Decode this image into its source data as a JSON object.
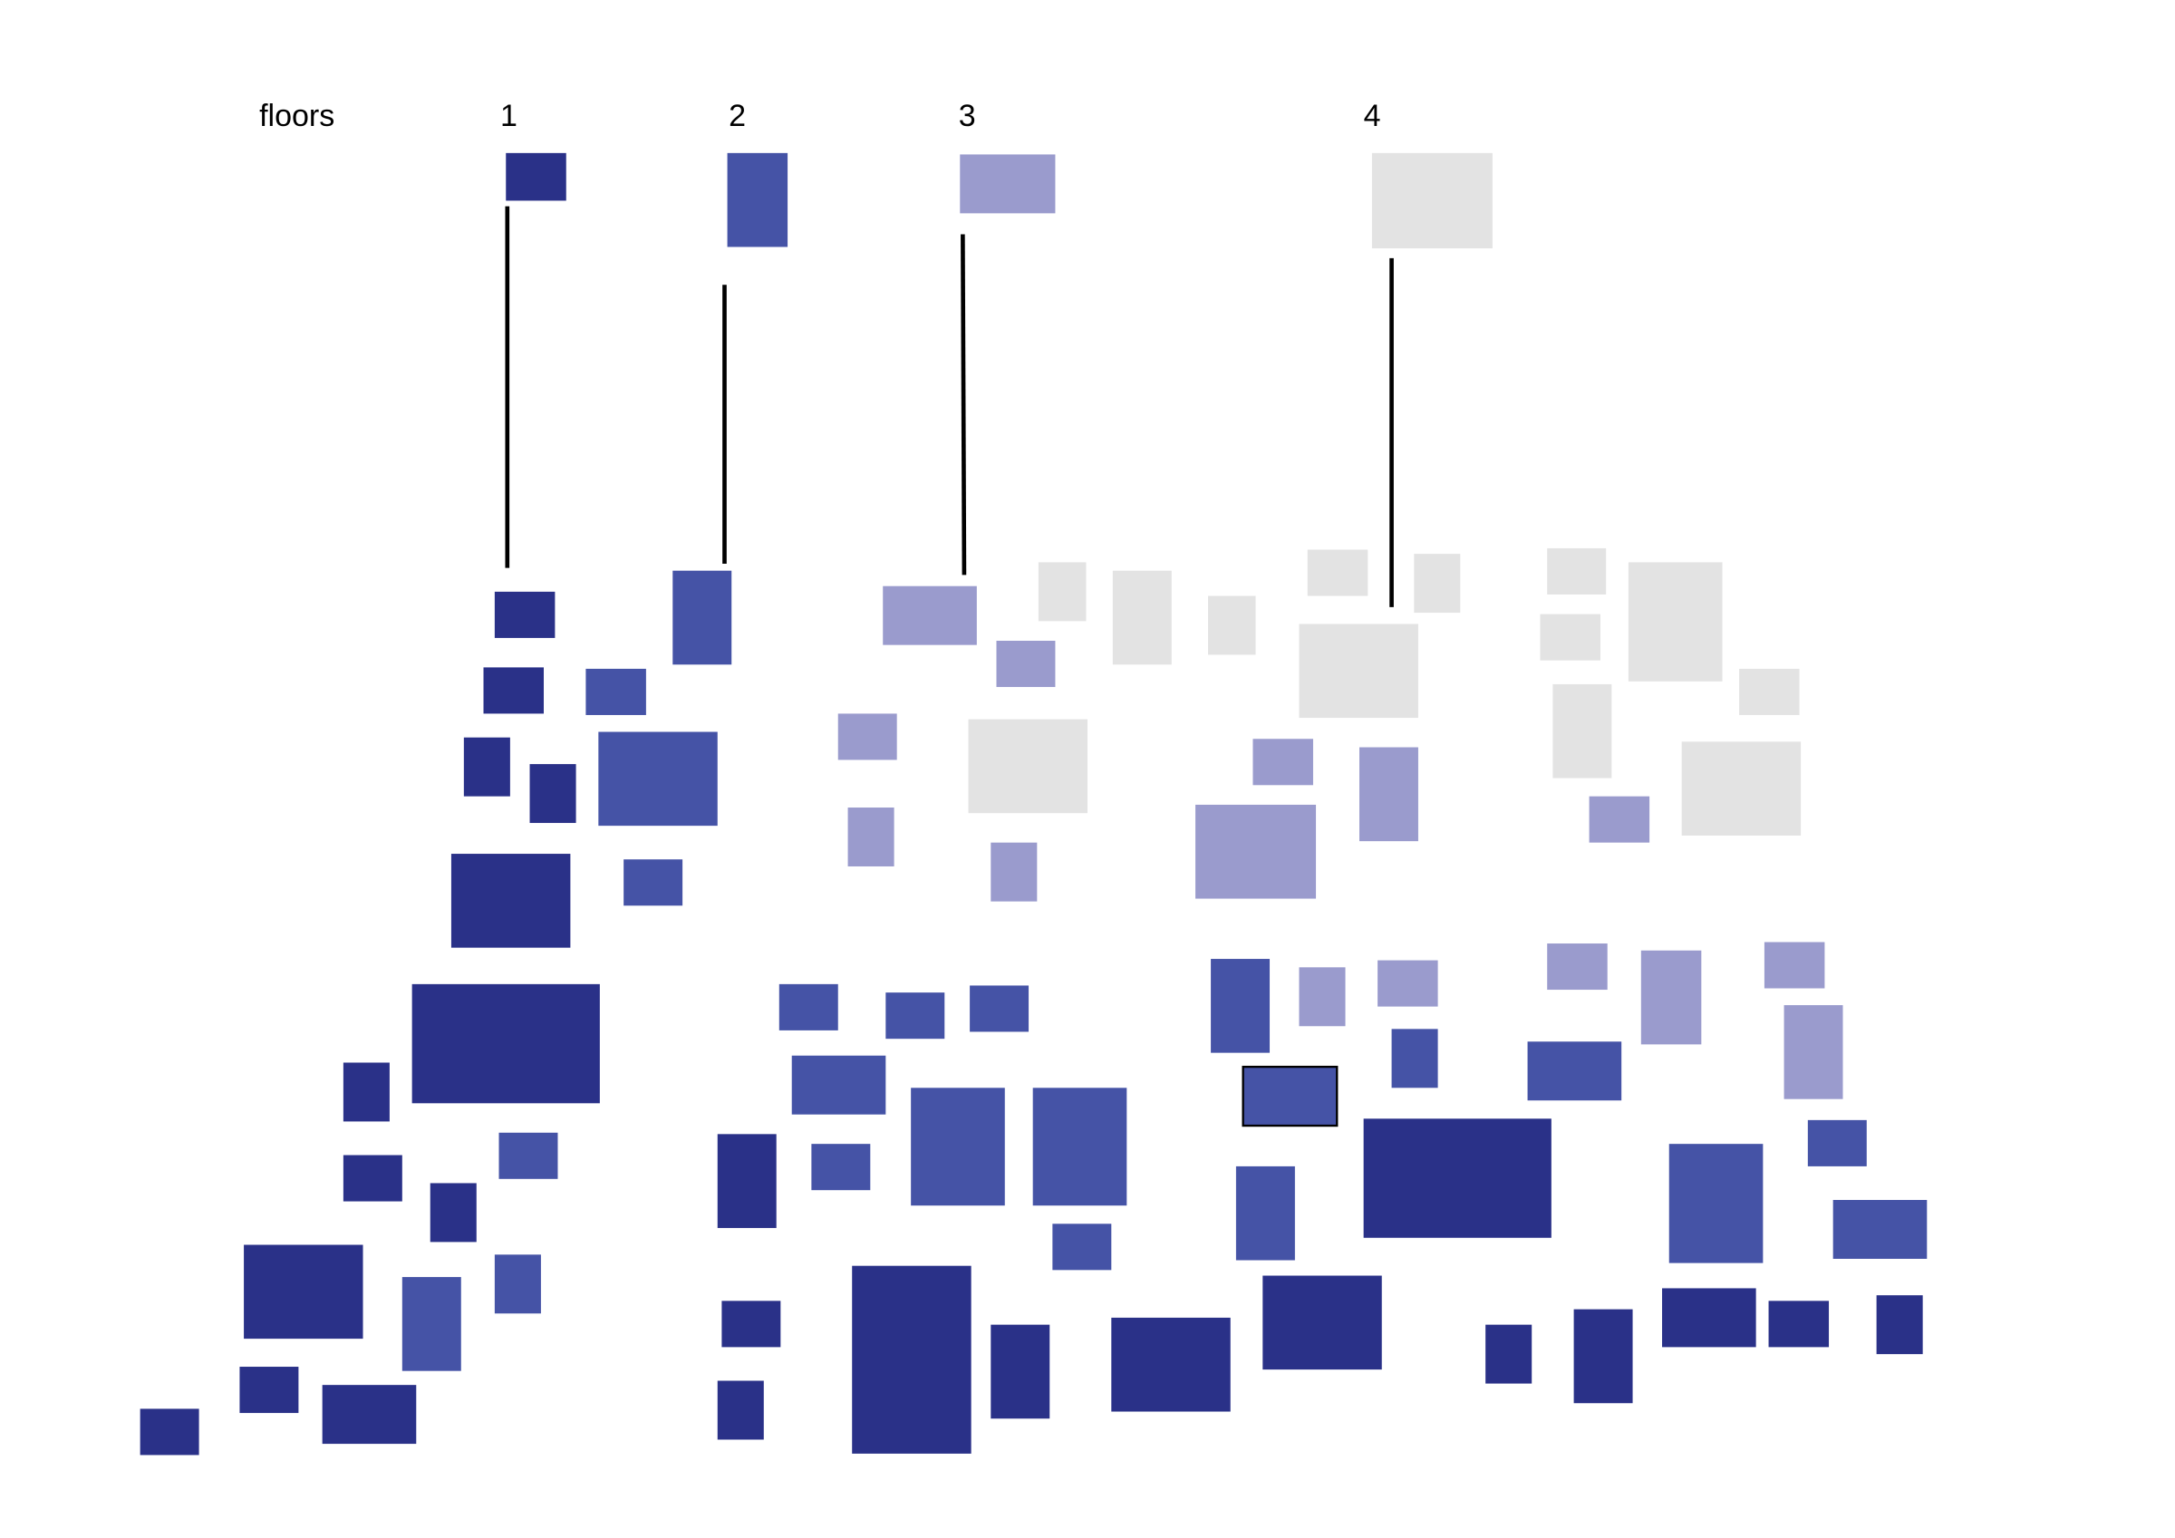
{
  "legend_title": "floors",
  "floors": [
    {
      "label": "1"
    },
    {
      "label": "2"
    },
    {
      "label": "3"
    },
    {
      "label": "4"
    }
  ]
}
